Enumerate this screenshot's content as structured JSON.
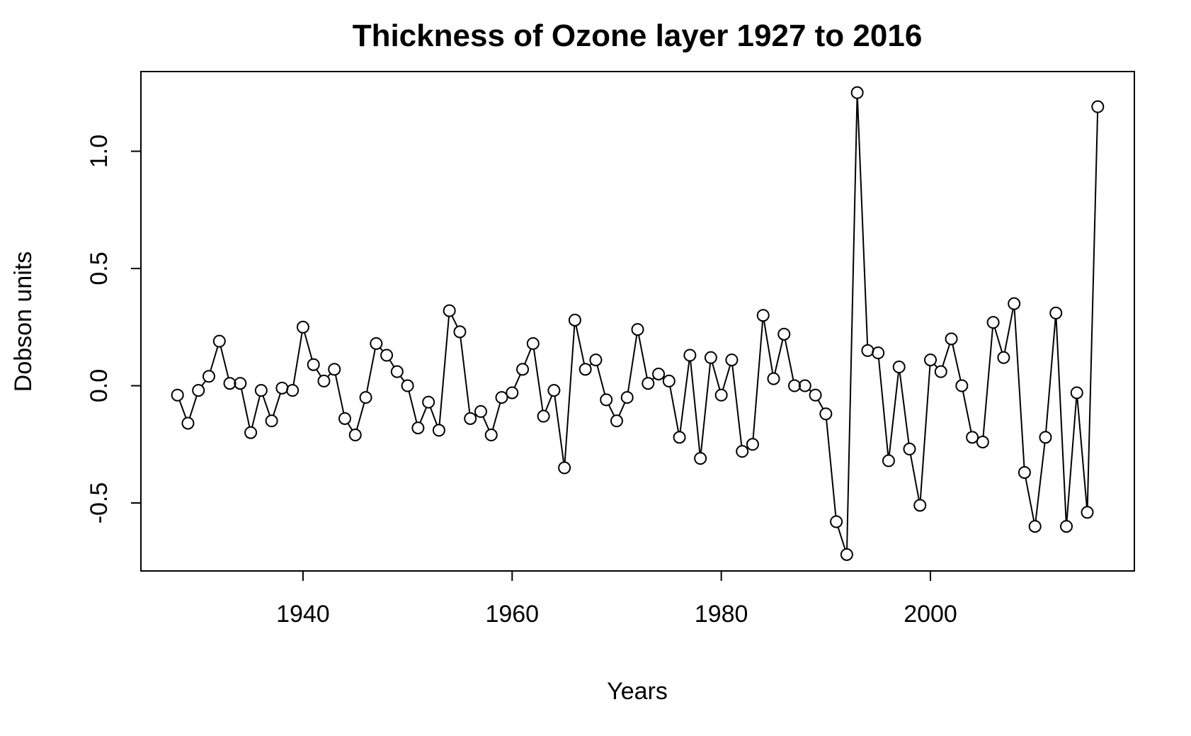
{
  "chart_data": {
    "type": "line",
    "title": "Thickness of Ozone layer 1927 to 2016",
    "xlabel": "Years",
    "ylabel": "Dobson units",
    "xlim": [
      1924.5,
      2019.5
    ],
    "ylim": [
      -0.79,
      1.34
    ],
    "x_ticks": [
      1940,
      1960,
      1980,
      2000
    ],
    "x_tick_labels": [
      "1940",
      "1960",
      "1980",
      "2000"
    ],
    "y_ticks": [
      -0.5,
      0.0,
      0.5,
      1.0
    ],
    "y_tick_labels": [
      "-0.5",
      "0.0",
      "0.5",
      "1.0"
    ],
    "grid": false,
    "marker": "open-circle",
    "line_color": "#000000",
    "series": [
      {
        "x": [
          1928,
          1929,
          1930,
          1931,
          1932,
          1933,
          1934,
          1935,
          1936,
          1937,
          1938,
          1939,
          1940,
          1941,
          1942,
          1943,
          1944,
          1945,
          1946,
          1947,
          1948,
          1949,
          1950,
          1951,
          1952,
          1953,
          1954,
          1955,
          1956,
          1957,
          1958,
          1959,
          1960,
          1961,
          1962,
          1963,
          1964,
          1965,
          1966,
          1967,
          1968,
          1969,
          1970,
          1971,
          1972,
          1973,
          1974,
          1975,
          1976,
          1977,
          1978,
          1979,
          1980,
          1981,
          1982,
          1983,
          1984,
          1985,
          1986,
          1987,
          1988,
          1989,
          1990,
          1991,
          1992,
          1993,
          1994,
          1995,
          1996,
          1997,
          1998,
          1999,
          2000,
          2001,
          2002,
          2003,
          2004,
          2005,
          2006,
          2007,
          2008,
          2009,
          2010,
          2011,
          2012,
          2013,
          2014,
          2015,
          2016
        ],
        "values": [
          -0.04,
          -0.16,
          -0.02,
          0.04,
          0.19,
          0.01,
          0.01,
          -0.2,
          -0.02,
          -0.15,
          -0.01,
          -0.02,
          0.25,
          0.09,
          0.02,
          0.07,
          -0.14,
          -0.21,
          -0.05,
          0.18,
          0.13,
          0.06,
          0.0,
          -0.18,
          -0.07,
          -0.19,
          0.32,
          0.23,
          -0.14,
          -0.11,
          -0.21,
          -0.05,
          -0.03,
          0.07,
          0.18,
          -0.13,
          -0.02,
          -0.35,
          0.28,
          0.07,
          0.11,
          -0.06,
          -0.15,
          -0.05,
          0.24,
          0.01,
          0.05,
          0.02,
          -0.22,
          0.13,
          -0.31,
          0.12,
          -0.04,
          0.11,
          -0.28,
          -0.25,
          0.3,
          0.03,
          0.22,
          0.0,
          0.0,
          -0.04,
          -0.12,
          -0.58,
          -0.72,
          1.25,
          0.15,
          0.14,
          -0.32,
          0.08,
          -0.27,
          -0.51,
          0.11,
          0.06,
          0.2,
          0.0,
          -0.22,
          -0.24,
          0.27,
          0.12,
          0.35,
          -0.37,
          -0.6,
          -0.22,
          0.31,
          -0.6,
          -0.03,
          -0.54,
          1.19
        ]
      }
    ]
  }
}
